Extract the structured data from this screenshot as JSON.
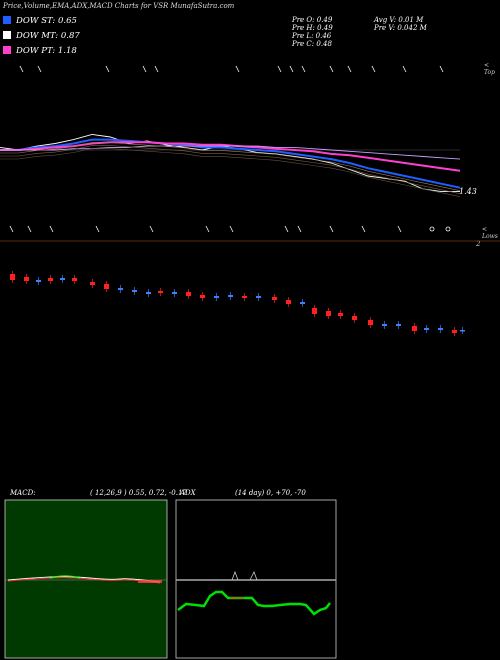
{
  "header": {
    "title": "Price,Volume,EMA,ADX,MACD Charts for VSR MunafaSutra.com"
  },
  "legend": [
    {
      "label": "DOW ST: 0.65",
      "color": "#1f5fff"
    },
    {
      "label": "DOW MT: 0.87",
      "color": "#ffffff"
    },
    {
      "label": "DOW PT: 1.18",
      "color": "#ff3fd0"
    }
  ],
  "info": {
    "open": "Pre  O: 0.49",
    "high": "Pre  H: 0.49",
    "low": "Pre  L: 0.46",
    "close": "Pre  C: 0.48",
    "avg_vol": "Avg V: 0.01 M",
    "pre_vol": "Pre  V: 0.042  M"
  },
  "labels": {
    "top": "< Top",
    "low": "< Lows",
    "last_price": "1.43",
    "axis_2": "2"
  },
  "macd": {
    "name": "MACD:",
    "params": "( 12,26,9 ) 0.55,  0.72, -0.17"
  },
  "adx": {
    "name": "ADX",
    "params": "(14  day) 0, +70, -70"
  },
  "colors": {
    "macd_bg": "#003a00",
    "up_candle": "#3f7fff",
    "down_candle": "#ff2020",
    "ema_short": "#1f5fff",
    "ema_mid": "#ffffff",
    "ema_long": "#ff3fd0",
    "adx_line": "#00e000"
  },
  "chart_data": {
    "type": "line",
    "series": [
      {
        "values": [
          1.0,
          1.0,
          1.0,
          1.0,
          1.0,
          1.0,
          1.0,
          1.0,
          1.0,
          1.0,
          1.0,
          1.0,
          1.0,
          1.0,
          1.0,
          1.0,
          1.0,
          1.0,
          1.0,
          1.0,
          1.0,
          1.0,
          1.0,
          1.0,
          1.0,
          1.0
        ]
      },
      {
        "values": [
          1.02,
          1.0,
          1.03,
          1.05,
          1.08,
          1.12,
          1.1,
          1.05,
          1.07,
          1.04,
          1.02,
          1.0,
          1.03,
          1.01,
          0.98,
          0.97,
          0.95,
          0.93,
          0.9,
          0.85,
          0.8,
          0.78,
          0.76,
          0.7,
          0.68,
          0.68
        ]
      },
      {
        "values": [
          1.0,
          1.0,
          1.02,
          1.03,
          1.05,
          1.08,
          1.08,
          1.07,
          1.06,
          1.05,
          1.04,
          1.02,
          1.02,
          1.01,
          1.0,
          0.99,
          0.97,
          0.95,
          0.93,
          0.9,
          0.86,
          0.83,
          0.8,
          0.77,
          0.74,
          0.71
        ]
      },
      {
        "values": [
          1.0,
          1.0,
          1.01,
          1.02,
          1.03,
          1.05,
          1.06,
          1.06,
          1.06,
          1.05,
          1.05,
          1.04,
          1.04,
          1.03,
          1.02,
          1.01,
          1.0,
          0.99,
          0.97,
          0.96,
          0.94,
          0.92,
          0.9,
          0.88,
          0.86,
          0.84
        ]
      },
      {
        "values": [
          1.0,
          1.0,
          1.0,
          1.0,
          1.01,
          1.01,
          1.02,
          1.02,
          1.03,
          1.03,
          1.03,
          1.03,
          1.03,
          1.03,
          1.03,
          1.02,
          1.02,
          1.01,
          1.0,
          0.99,
          0.98,
          0.97,
          0.96,
          0.95,
          0.94,
          0.93
        ]
      }
    ]
  }
}
